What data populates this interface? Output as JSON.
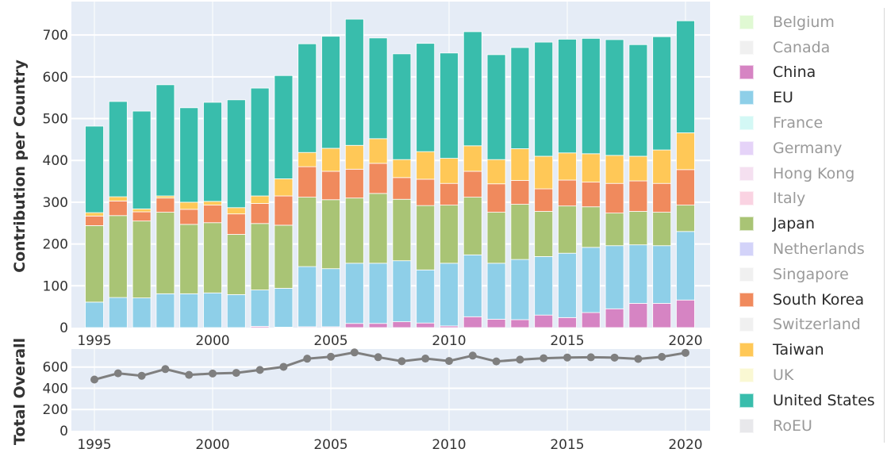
{
  "chart_data": [
    {
      "type": "bar",
      "stacked": true,
      "ylabel": "Contribution per Country",
      "xlabel": "",
      "ylim": [
        0,
        780
      ],
      "yticks": [
        0,
        100,
        200,
        300,
        400,
        500,
        600,
        700
      ],
      "xticks": [
        1995,
        2000,
        2005,
        2010,
        2015,
        2020
      ],
      "grid": true,
      "categories": [
        1995,
        1996,
        1997,
        1998,
        1999,
        2000,
        2001,
        2002,
        2003,
        2004,
        2005,
        2006,
        2007,
        2008,
        2009,
        2010,
        2011,
        2012,
        2013,
        2014,
        2015,
        2016,
        2017,
        2018,
        2019,
        2020
      ],
      "series": [
        {
          "name": "China",
          "color": "#d684c3",
          "values": [
            0,
            0,
            0,
            0,
            0,
            0,
            0,
            3,
            1,
            2,
            2,
            10,
            10,
            14,
            11,
            4,
            26,
            20,
            19,
            30,
            24,
            36,
            45,
            58,
            58,
            66
          ]
        },
        {
          "name": "EU",
          "color": "#8ecfe8",
          "values": [
            61,
            72,
            71,
            81,
            81,
            83,
            79,
            87,
            93,
            144,
            139,
            144,
            144,
            146,
            127,
            150,
            148,
            134,
            144,
            140,
            154,
            156,
            151,
            140,
            138,
            164
          ]
        },
        {
          "name": "Japan",
          "color": "#a9c475",
          "values": [
            183,
            196,
            184,
            195,
            166,
            168,
            144,
            159,
            151,
            166,
            165,
            156,
            167,
            147,
            154,
            139,
            138,
            122,
            132,
            108,
            113,
            97,
            78,
            80,
            80,
            63
          ]
        },
        {
          "name": "South Korea",
          "color": "#f08a5d",
          "values": [
            23,
            35,
            22,
            34,
            36,
            42,
            49,
            48,
            70,
            73,
            68,
            69,
            72,
            52,
            63,
            52,
            62,
            68,
            57,
            54,
            62,
            59,
            71,
            73,
            69,
            85
          ]
        },
        {
          "name": "Taiwan",
          "color": "#ffc857",
          "values": [
            8,
            10,
            7,
            5,
            17,
            9,
            15,
            18,
            41,
            34,
            55,
            57,
            59,
            43,
            66,
            60,
            61,
            58,
            76,
            78,
            65,
            68,
            67,
            59,
            80,
            88
          ]
        },
        {
          "name": "United States",
          "color": "#39bdac",
          "values": [
            207,
            228,
            234,
            266,
            226,
            237,
            258,
            258,
            247,
            260,
            268,
            302,
            241,
            253,
            259,
            252,
            273,
            251,
            242,
            273,
            272,
            276,
            277,
            267,
            271,
            268
          ]
        }
      ]
    },
    {
      "type": "line",
      "ylabel": "Total Overall",
      "ylim": [
        0,
        770
      ],
      "yticks": [
        0,
        200,
        400,
        600
      ],
      "xticks": [
        1995,
        2000,
        2005,
        2010,
        2015,
        2020
      ],
      "grid": true,
      "series": [
        {
          "name": "Total",
          "color": "#7f7f7f",
          "x": [
            1995,
            1996,
            1997,
            1998,
            1999,
            2000,
            2001,
            2002,
            2003,
            2004,
            2005,
            2006,
            2007,
            2008,
            2009,
            2010,
            2011,
            2012,
            2013,
            2014,
            2015,
            2016,
            2017,
            2018,
            2019,
            2020
          ],
          "y": [
            482,
            541,
            518,
            581,
            526,
            539,
            545,
            573,
            602,
            679,
            697,
            738,
            693,
            655,
            680,
            657,
            708,
            653,
            670,
            683,
            690,
            692,
            689,
            677,
            696,
            734
          ]
        }
      ]
    }
  ],
  "legend": {
    "placement": "right",
    "items": [
      {
        "label": "Belgium",
        "color": "#c2f5a8",
        "visible": false
      },
      {
        "label": "Canada",
        "color": "#e3e3e3",
        "visible": false
      },
      {
        "label": "China",
        "color": "#d684c3",
        "visible": true
      },
      {
        "label": "EU",
        "color": "#8ecfe8",
        "visible": true
      },
      {
        "label": "France",
        "color": "#a8f3ec",
        "visible": false
      },
      {
        "label": "Germany",
        "color": "#cda8f3",
        "visible": false
      },
      {
        "label": "Hong Kong",
        "color": "#ecc2e3",
        "visible": false
      },
      {
        "label": "Italy",
        "color": "#f7a8c6",
        "visible": false
      },
      {
        "label": "Japan",
        "color": "#a9c475",
        "visible": true
      },
      {
        "label": "Netherlands",
        "color": "#a8a8f5",
        "visible": false
      },
      {
        "label": "Singapore",
        "color": "#e3e3e3",
        "visible": false
      },
      {
        "label": "South Korea",
        "color": "#f08a5d",
        "visible": true
      },
      {
        "label": "Switzerland",
        "color": "#e3e3e3",
        "visible": false
      },
      {
        "label": "Taiwan",
        "color": "#ffc857",
        "visible": true
      },
      {
        "label": "UK",
        "color": "#f7f3a8",
        "visible": false
      },
      {
        "label": "United States",
        "color": "#39bdac",
        "visible": true
      },
      {
        "label": "RoEU",
        "color": "#d3d3d8",
        "visible": false
      }
    ]
  }
}
